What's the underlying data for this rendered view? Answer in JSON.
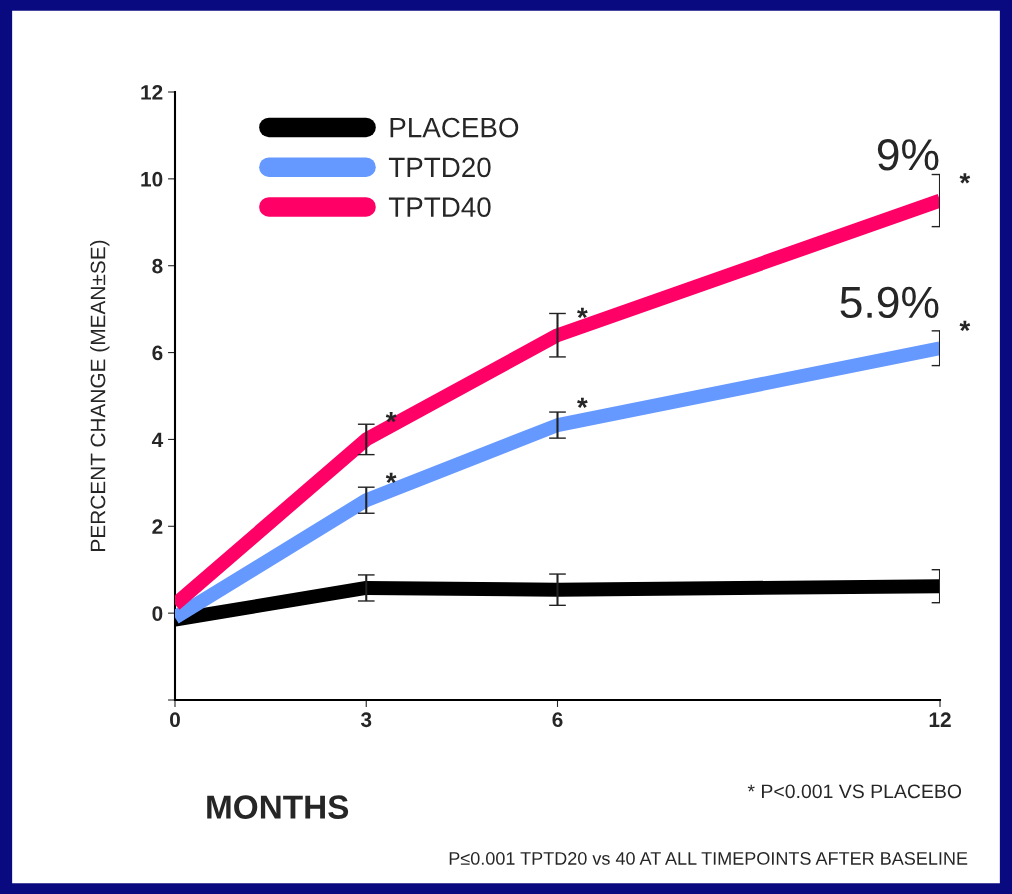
{
  "chart_data": {
    "type": "line",
    "xlabel": "MONTHS",
    "ylabel": "PERCENT CHANGE (MEAN±SE)",
    "x": [
      0,
      3,
      6,
      12
    ],
    "series": [
      {
        "name": "PLACEBO",
        "color": "#000000",
        "values": [
          -0.15,
          0.58,
          0.54,
          0.62
        ],
        "errors": [
          null,
          0.3,
          0.36,
          0.38
        ]
      },
      {
        "name": "TPTD20",
        "color": "#6699ff",
        "values": [
          -0.1,
          2.6,
          4.33,
          6.1
        ],
        "errors": [
          null,
          0.3,
          0.3,
          0.4
        ]
      },
      {
        "name": "TPTD40",
        "color": "#ff0066",
        "values": [
          0.2,
          4.0,
          6.4,
          9.5
        ],
        "errors": [
          null,
          0.35,
          0.5,
          0.6
        ]
      }
    ],
    "xlim": [
      0,
      12
    ],
    "xticks": [
      0,
      3,
      6,
      12
    ],
    "ylim": [
      -2,
      12
    ],
    "yticks": [
      {
        "value": -2,
        "label": null
      },
      0,
      2,
      4,
      6,
      8,
      10,
      12
    ],
    "grid": false,
    "legend": "top left",
    "marker": "none",
    "line_style": "solid",
    "annotations": [
      {
        "text": "9%",
        "x": 12,
        "y": 9.5
      },
      {
        "text": "5.9%",
        "x": 12,
        "y": 6.1
      },
      {
        "text": "*",
        "x": 3,
        "y": 2.6
      },
      {
        "text": "*",
        "x": 6,
        "y": 4.33
      },
      {
        "text": "*",
        "x": 12,
        "y": 6.1
      },
      {
        "text": "*",
        "x": 3,
        "y": 4.0
      },
      {
        "text": "*",
        "x": 6,
        "y": 6.4
      },
      {
        "text": "*",
        "x": 12,
        "y": 9.5
      },
      "* P<0.001 VS PLACEBO",
      "P≤0.001 TPTD20 vs 40 AT ALL TIMEPOINTS AFTER BASELINE"
    ]
  }
}
